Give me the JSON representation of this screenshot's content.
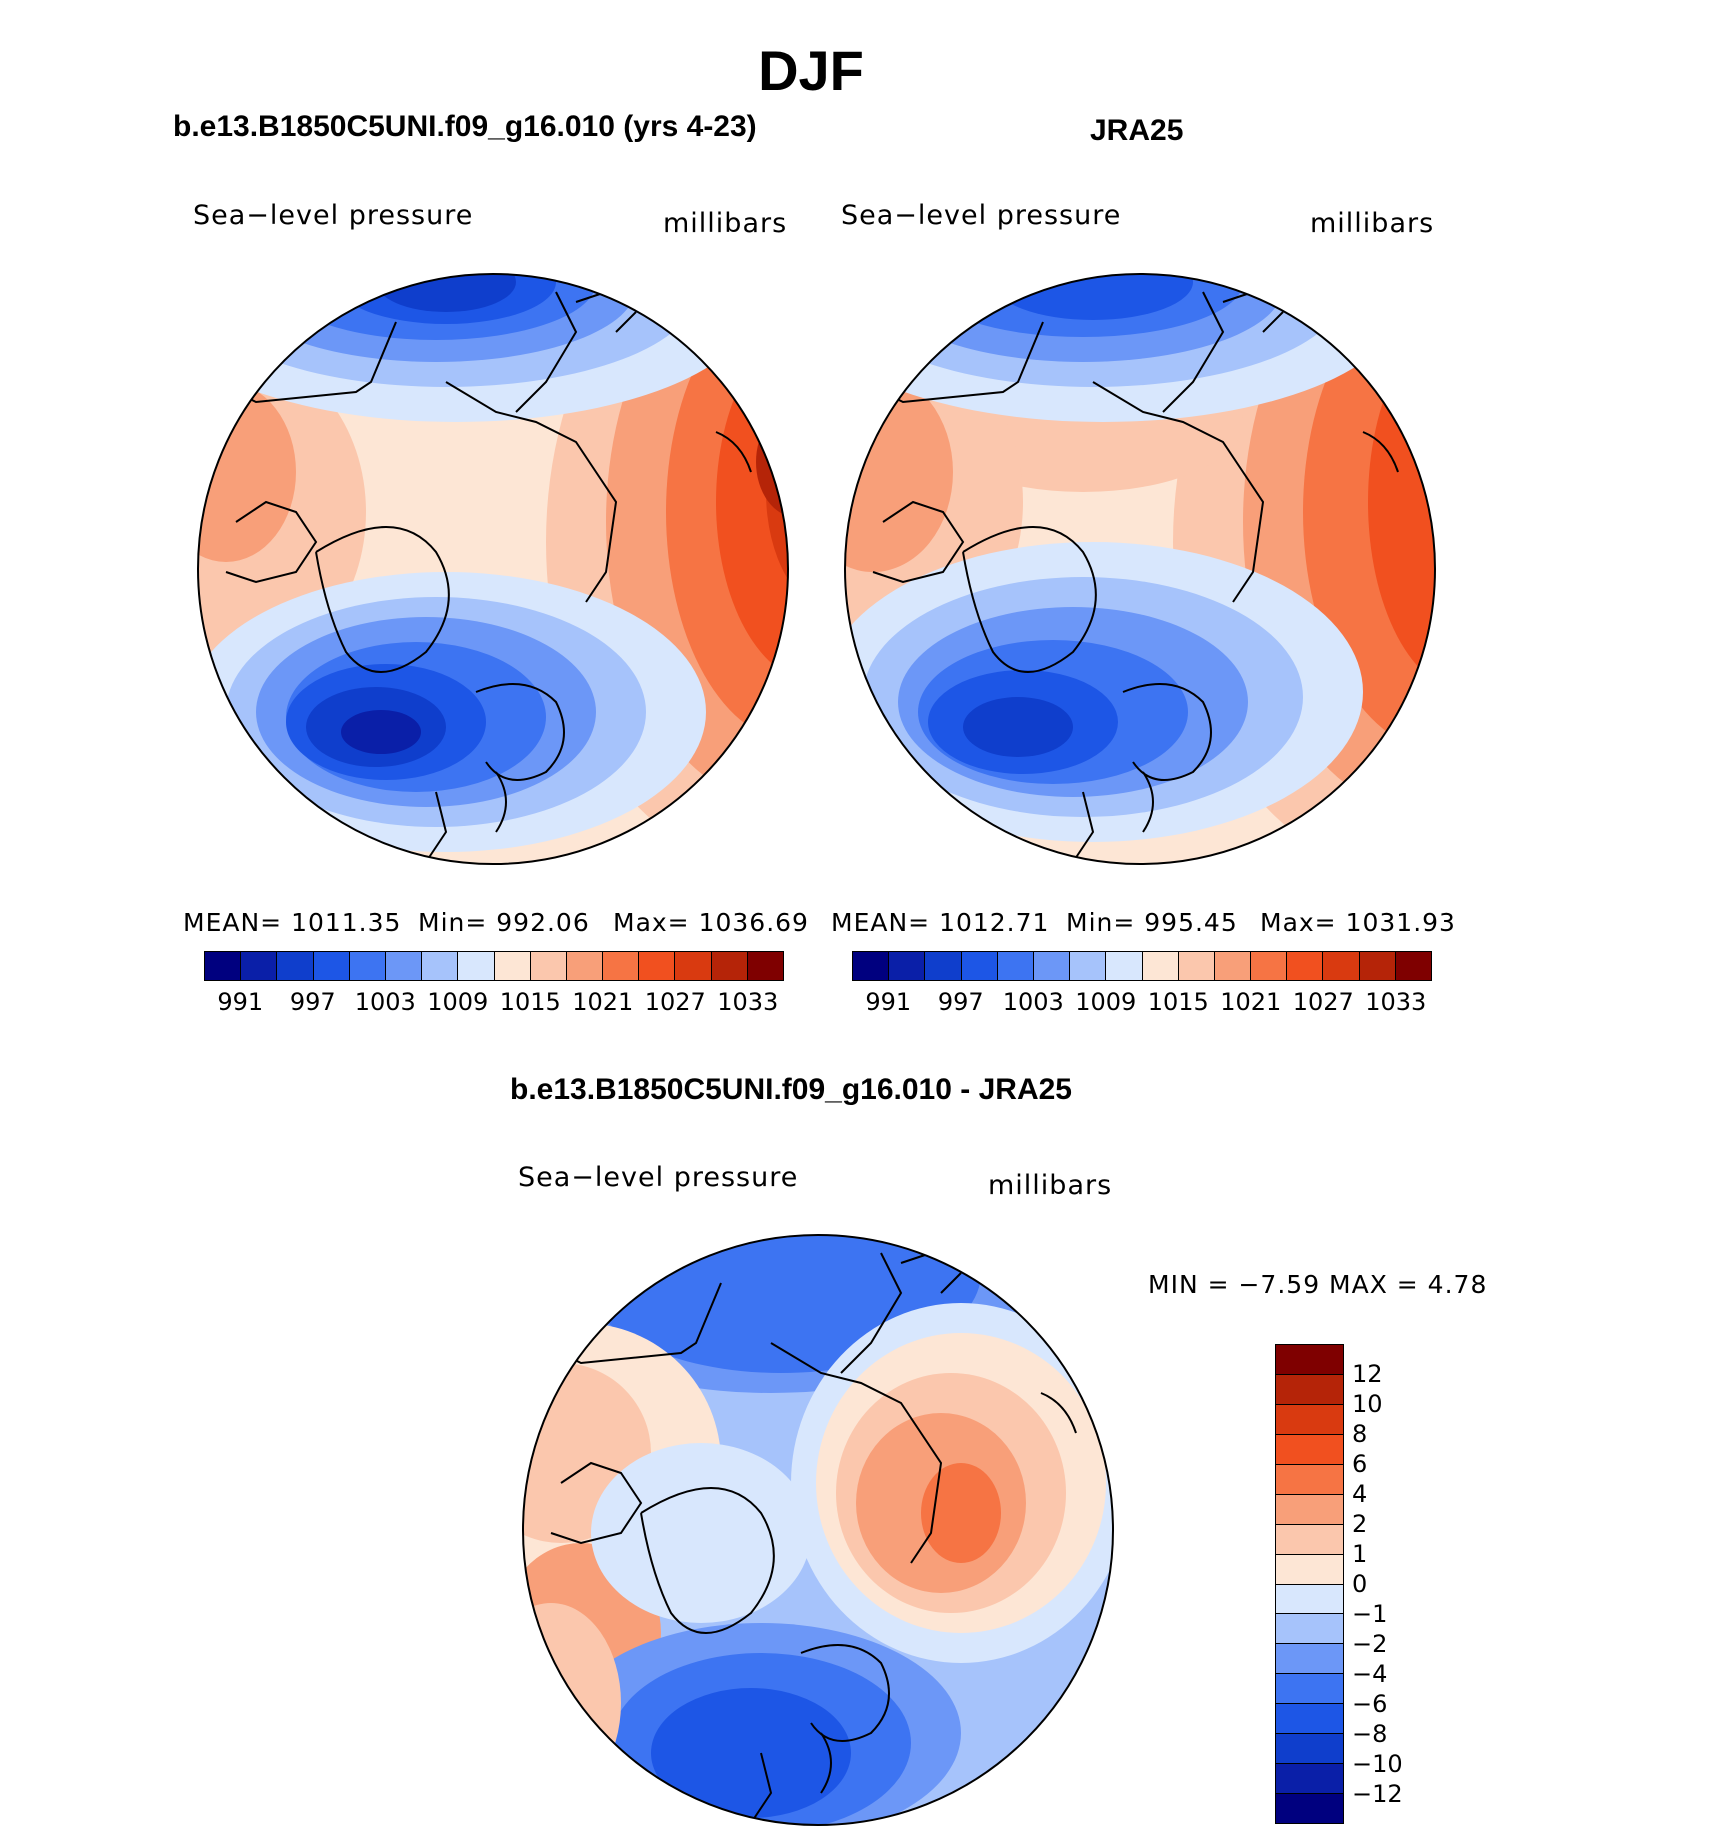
{
  "title": "DJF",
  "panels": [
    {
      "id": "model",
      "title": "b.e13.B1850C5UNI.f09_g16.010 (yrs 4-23)",
      "variable": "Sea−level pressure",
      "units": "millibars",
      "stats": {
        "mean": "MEAN=  1011.35",
        "min": "Min=  992.06",
        "max": "Max=  1036.69"
      }
    },
    {
      "id": "obs",
      "title": "JRA25",
      "variable": "Sea−level pressure",
      "units": "millibars",
      "stats": {
        "mean": "MEAN=  1012.71",
        "min": "Min=  995.45",
        "max": "Max=  1031.93"
      }
    }
  ],
  "diff_panel": {
    "title": "b.e13.B1850C5UNI.f09_g16.010 - JRA25",
    "variable": "Sea−level pressure",
    "units": "millibars",
    "minmax": "MIN =   −7.59  MAX =     4.78"
  },
  "abs_colorbar": {
    "colors": [
      "#00007f",
      "#0a1fa8",
      "#0f3ecc",
      "#1d56e6",
      "#3d74f2",
      "#6c97f7",
      "#a6c3fb",
      "#d8e7fd",
      "#fde6d5",
      "#fbc7ad",
      "#f89f79",
      "#f67444",
      "#f1501f",
      "#d93a10",
      "#b52408",
      "#7f0000"
    ],
    "tick_labels": [
      "991",
      "997",
      "1003",
      "1009",
      "1015",
      "1021",
      "1027",
      "1033"
    ]
  },
  "diff_colorbar": {
    "colors": [
      "#7f0000",
      "#b52408",
      "#d93a10",
      "#f1501f",
      "#f67444",
      "#f89f79",
      "#fbc7ad",
      "#fde6d5",
      "#d8e7fd",
      "#a6c3fb",
      "#6c97f7",
      "#3d74f2",
      "#1d56e6",
      "#0f3ecc",
      "#0a1fa8",
      "#00007f"
    ],
    "tick_labels": [
      "12",
      "10",
      "8",
      "6",
      "4",
      "2",
      "1",
      "0",
      "−1",
      "−2",
      "−4",
      "−6",
      "−8",
      "−10",
      "−12"
    ]
  }
}
